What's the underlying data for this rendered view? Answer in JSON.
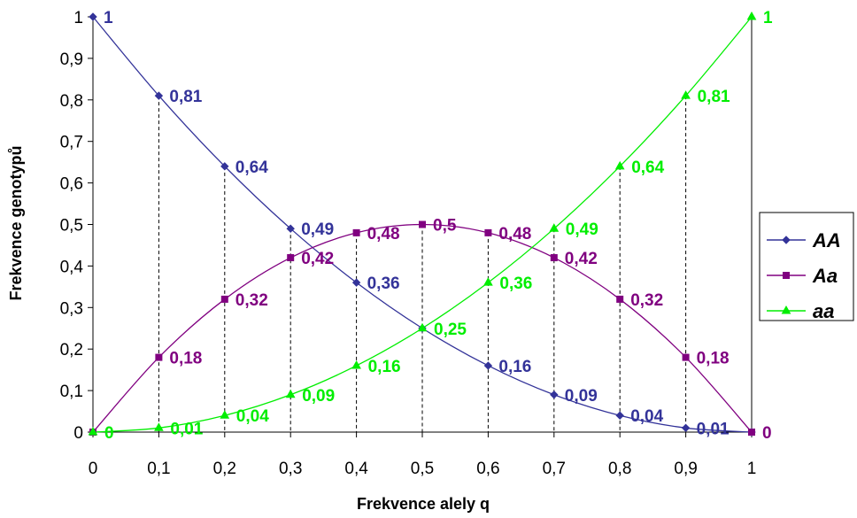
{
  "chart_data": {
    "type": "line",
    "xlabel": "Frekvence alely q",
    "ylabel": "Frekvence genotypů",
    "xlim": [
      0,
      1
    ],
    "ylim": [
      0,
      1
    ],
    "x_ticks": [
      "0",
      "0,1",
      "0,2",
      "0,3",
      "0,4",
      "0,5",
      "0,6",
      "0,7",
      "0,8",
      "0,9",
      "1"
    ],
    "y_ticks": [
      "0",
      "0,1",
      "0,2",
      "0,3",
      "0,4",
      "0,5",
      "0,6",
      "0,7",
      "0,8",
      "0,9",
      "1"
    ],
    "grid": "vertical dashed drop lines at each x value",
    "legend_position": "right",
    "x": [
      0,
      0.1,
      0.2,
      0.3,
      0.4,
      0.5,
      0.6,
      0.7,
      0.8,
      0.9,
      1
    ],
    "series": [
      {
        "name": "AA",
        "color": "#333399",
        "marker": "diamond",
        "values": [
          1,
          0.81,
          0.64,
          0.49,
          0.36,
          0.25,
          0.16,
          0.09,
          0.04,
          0.01,
          0
        ],
        "labels": [
          "1",
          "0,81",
          "0,64",
          "0,49",
          "0,36",
          "",
          "0,16",
          "0,09",
          "0,04",
          "0,01",
          ""
        ]
      },
      {
        "name": "Aa",
        "color": "#800080",
        "marker": "square",
        "values": [
          0,
          0.18,
          0.32,
          0.42,
          0.48,
          0.5,
          0.48,
          0.42,
          0.32,
          0.18,
          0
        ],
        "labels": [
          "",
          "0,18",
          "0,32",
          "0,42",
          "0,48",
          "0,5",
          "0,48",
          "0,42",
          "0,32",
          "0,18",
          "0"
        ]
      },
      {
        "name": "aa",
        "color": "#00ee00",
        "marker": "triangle",
        "values": [
          0,
          0.01,
          0.04,
          0.09,
          0.16,
          0.25,
          0.36,
          0.49,
          0.64,
          0.81,
          1
        ],
        "labels": [
          "0",
          "0,01",
          "0,04",
          "0,09",
          "0,16",
          "0,25",
          "0,36",
          "0,49",
          "0,64",
          "0,81",
          "1"
        ]
      }
    ]
  }
}
